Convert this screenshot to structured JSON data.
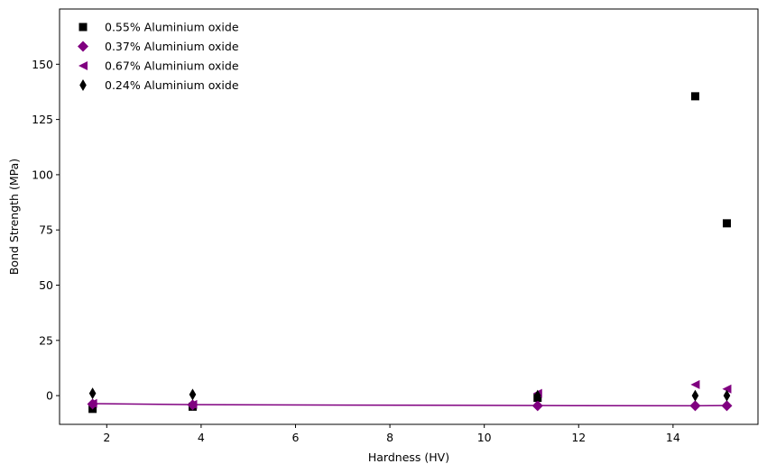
{
  "chart_data": {
    "type": "scatter",
    "title": "",
    "xlabel": "Hardness (HV)",
    "ylabel": "Bond Strength (MPa)",
    "xlim": [
      1.0,
      15.8
    ],
    "ylim": [
      -13,
      175
    ],
    "xticks": [
      2,
      4,
      6,
      8,
      10,
      12,
      14
    ],
    "yticks": [
      0,
      25,
      50,
      75,
      100,
      125,
      150
    ],
    "grid": false,
    "legend_position": "top-left",
    "series": [
      {
        "name": "0.55% Aluminium oxide",
        "marker": "square",
        "color": "#000000",
        "x": [
          1.7,
          3.82,
          11.13,
          14.47,
          15.14
        ],
        "y": [
          -6,
          -5,
          -1,
          135.5,
          78
        ]
      },
      {
        "name": "0.37% Aluminium oxide",
        "marker": "diamond",
        "color": "#800080",
        "x": [
          1.7,
          3.82,
          11.13,
          14.47,
          15.14
        ],
        "y": [
          -3.8,
          -4.2,
          -4.6,
          -4.6,
          -4.6
        ]
      },
      {
        "name": "0.67% Aluminium oxide",
        "marker": "triangle-left",
        "color": "#800080",
        "x": [
          1.7,
          3.82,
          11.13,
          14.47,
          15.14
        ],
        "y": [
          -3.5,
          -4,
          1,
          5,
          3
        ]
      },
      {
        "name": "0.24% Aluminium oxide",
        "marker": "thin-diamond",
        "color": "#000000",
        "x": [
          1.7,
          3.82,
          11.13,
          14.47,
          15.14
        ],
        "y": [
          1,
          0.5,
          0,
          0,
          0
        ]
      }
    ],
    "fit_line": {
      "color": "#800080",
      "x": [
        1.7,
        3.82,
        11.13,
        14.47,
        15.14
      ],
      "y": [
        -3.6,
        -4.1,
        -4.5,
        -4.6,
        -4.5
      ]
    }
  }
}
